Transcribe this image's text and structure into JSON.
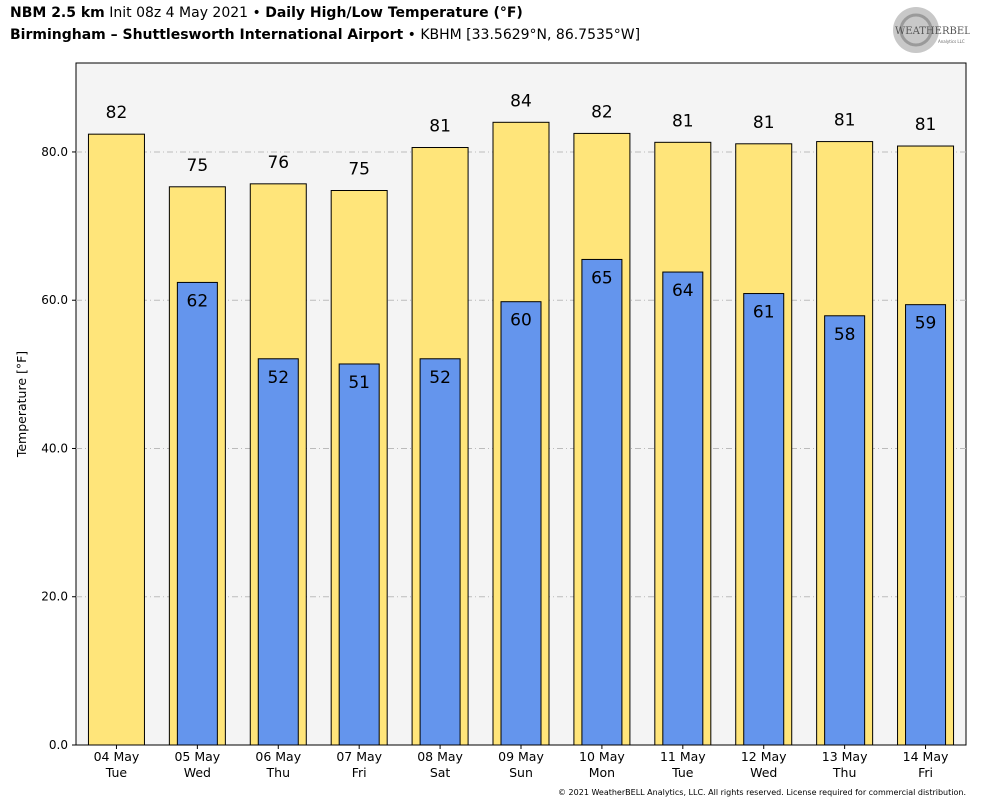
{
  "header": {
    "model": "NBM 2.5 km",
    "init": "Init 08z 4 May 2021",
    "sep": "•",
    "product": "Daily High/Low Temperature (°F)",
    "location": "Birmingham – Shuttlesworth International Airport",
    "station": "KBHM [33.5629°N, 86.7535°W]"
  },
  "logo": {
    "text": "WEATHERBELL",
    "subtext": "Analytics LLC"
  },
  "footer": {
    "copyright": "© 2021 WeatherBELL Analytics, LLC. All rights reserved. License required for commercial distribution."
  },
  "colors": {
    "high": "#FFE57A",
    "low": "#6495ED",
    "plot_bg": "#F4F4F4",
    "grid": "#BBBBBB"
  },
  "chart_data": {
    "type": "bar",
    "title": "Daily High/Low Temperature (°F)",
    "ylabel": "Temperature [°F]",
    "xlabel": "",
    "ylim": [
      0,
      92
    ],
    "yticks": [
      0,
      20,
      40,
      60,
      80
    ],
    "ytick_labels": [
      "0.0",
      "20.0",
      "40.0",
      "60.0",
      "80.0"
    ],
    "grid": true,
    "categories": [
      [
        "04 May",
        "Tue"
      ],
      [
        "05 May",
        "Wed"
      ],
      [
        "06 May",
        "Thu"
      ],
      [
        "07 May",
        "Fri"
      ],
      [
        "08 May",
        "Sat"
      ],
      [
        "09 May",
        "Sun"
      ],
      [
        "10 May",
        "Mon"
      ],
      [
        "11 May",
        "Tue"
      ],
      [
        "12 May",
        "Wed"
      ],
      [
        "13 May",
        "Thu"
      ],
      [
        "14 May",
        "Fri"
      ]
    ],
    "series": [
      {
        "values": [
          82.4,
          75.3,
          75.7,
          74.8,
          80.6,
          84.0,
          82.5,
          81.3,
          81.1,
          81.4,
          80.8
        ],
        "labels": [
          "82",
          "75",
          "76",
          "75",
          "81",
          "84",
          "82",
          "81",
          "81",
          "81",
          "81"
        ]
      },
      {
        "values": [
          null,
          62.4,
          52.1,
          51.4,
          52.1,
          59.8,
          65.5,
          63.8,
          60.9,
          57.9,
          59.4
        ],
        "labels": [
          null,
          "62",
          "52",
          "51",
          "52",
          "60",
          "65",
          "64",
          "61",
          "58",
          "59"
        ]
      }
    ]
  }
}
